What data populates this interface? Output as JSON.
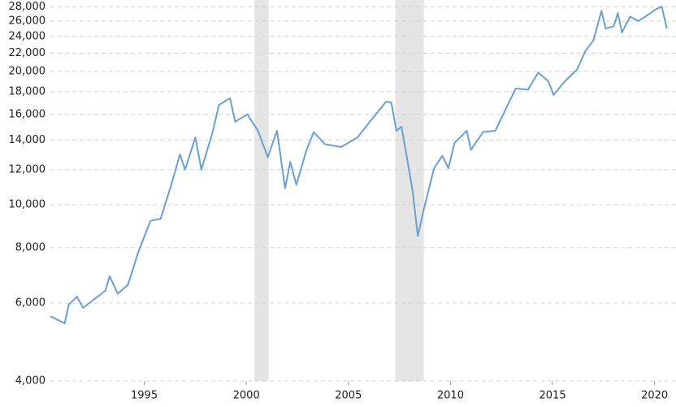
{
  "chart_data": {
    "type": "line",
    "x": [
      1990.4,
      1991.1,
      1991.3,
      1991.7,
      1992.0,
      1993.1,
      1993.3,
      1993.7,
      1994.2,
      1994.7,
      1995.3,
      1995.8,
      1996.3,
      1996.75,
      1997.0,
      1997.5,
      1997.8,
      1998.35,
      1998.66,
      1999.2,
      1999.45,
      2000.05,
      2000.57,
      2001.05,
      2001.5,
      2001.9,
      2002.15,
      2002.45,
      2002.95,
      2003.3,
      2003.85,
      2004.65,
      2005.45,
      2006.05,
      2006.85,
      2007.1,
      2007.35,
      2007.6,
      2007.8,
      2008.15,
      2008.4,
      2008.7,
      2009.2,
      2009.6,
      2009.9,
      2010.2,
      2010.8,
      2011.0,
      2011.6,
      2012.2,
      2012.8,
      2013.2,
      2013.8,
      2014.3,
      2014.8,
      2015.05,
      2015.6,
      2016.2,
      2016.6,
      2017.0,
      2017.4,
      2017.6,
      2018.0,
      2018.2,
      2018.4,
      2018.8,
      2019.2,
      2019.6,
      2020.1,
      2020.35,
      2020.6
    ],
    "series": [
      {
        "color": "#6a9fd4",
        "values": [
          5600,
          5400,
          5950,
          6200,
          5850,
          6400,
          6900,
          6300,
          6600,
          7800,
          9200,
          9300,
          11000,
          13000,
          12000,
          14200,
          12000,
          14600,
          16800,
          17400,
          15400,
          16000,
          14700,
          12800,
          14700,
          10900,
          12500,
          11100,
          13300,
          14600,
          13700,
          13500,
          14200,
          15400,
          17100,
          17000,
          14700,
          15000,
          13300,
          10700,
          8500,
          9800,
          12100,
          12900,
          12100,
          13800,
          14700,
          13300,
          14600,
          14700,
          16800,
          18300,
          18200,
          19900,
          19000,
          17700,
          19000,
          20200,
          22200,
          23500,
          27400,
          25000,
          25300,
          27100,
          24500,
          26600,
          26000,
          26700,
          27700,
          28000,
          25000
        ]
      }
    ],
    "shaded_regions": [
      [
        2000.4,
        2001.1
      ],
      [
        2007.3,
        2008.7
      ]
    ],
    "shade_color": "#e5e5e5",
    "xlim": [
      1990.4,
      2020.65
    ],
    "xticks": [
      1995,
      2000,
      2005,
      2010,
      2015,
      2020
    ],
    "ylim": [
      4000,
      29000
    ],
    "log_y": true,
    "grid": true,
    "yticks": [
      {
        "value": 4000,
        "label": "4,000"
      },
      {
        "value": 6000,
        "label": "6,000"
      },
      {
        "value": 8000,
        "label": "8,000"
      },
      {
        "value": 10000,
        "label": "10,000"
      },
      {
        "value": 12000,
        "label": "12,000"
      },
      {
        "value": 14000,
        "label": "14,000"
      },
      {
        "value": 16000,
        "label": "16,000"
      },
      {
        "value": 18000,
        "label": "18,000"
      },
      {
        "value": 20000,
        "label": "20,000"
      },
      {
        "value": 22000,
        "label": "22,000"
      },
      {
        "value": 24000,
        "label": "24,000"
      },
      {
        "value": 26000,
        "label": "26,000"
      },
      {
        "value": 28000,
        "label": "28,000"
      }
    ]
  }
}
